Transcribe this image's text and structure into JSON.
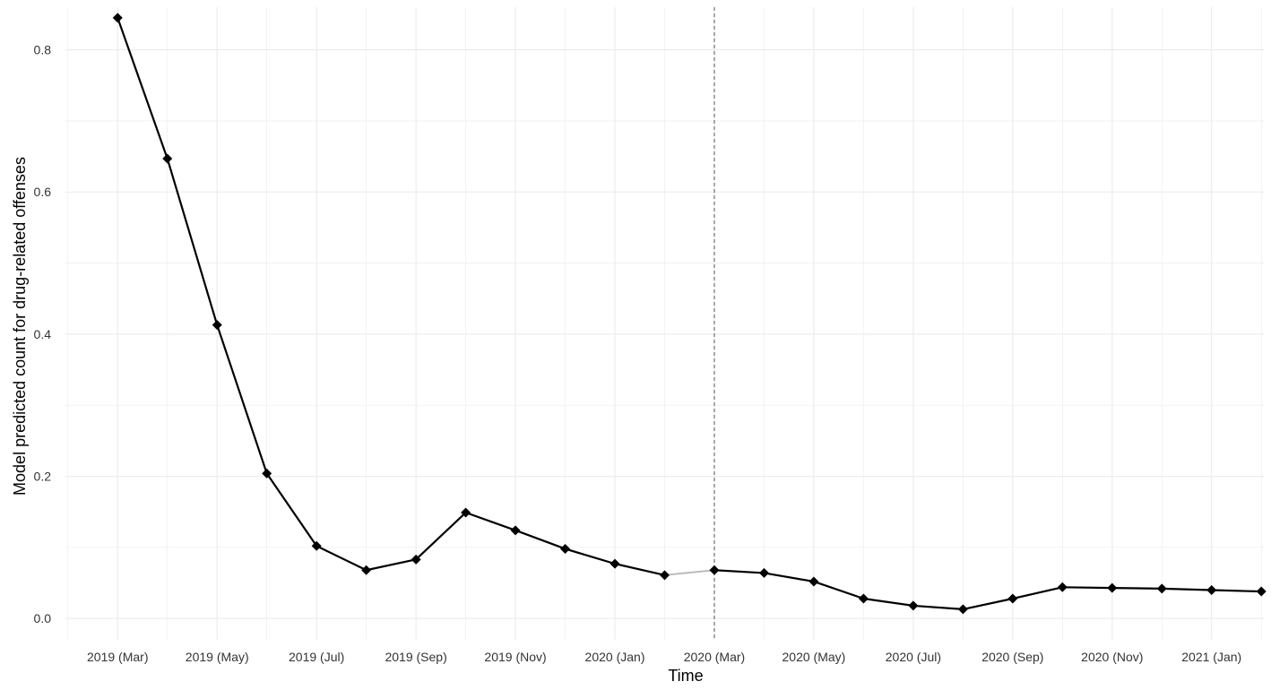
{
  "chart_data": {
    "type": "line",
    "title": "",
    "xlabel": "Time",
    "ylabel": "Model predicted count for drug-related offenses",
    "x_tick_labels": [
      "2019 (Mar)",
      "2019 (May)",
      "2019 (Jul)",
      "2019 (Sep)",
      "2019 (Nov)",
      "2020 (Jan)",
      "2020 (Mar)",
      "2020 (May)",
      "2020 (Jul)",
      "2020 (Sep)",
      "2020 (Nov)",
      "2021 (Jan)"
    ],
    "y_tick_labels": [
      "0.0",
      "0.2",
      "0.4",
      "0.6",
      "0.8"
    ],
    "y_ticks": [
      0,
      0.2,
      0.4,
      0.6,
      0.8
    ],
    "ylim": [
      -0.03,
      0.86
    ],
    "xlim": [
      "2019-02",
      "2021-02"
    ],
    "grid": true,
    "intervention_line": "2020-03",
    "series": [
      {
        "x": [
          "2019-03",
          "2019-04",
          "2019-05",
          "2019-06",
          "2019-07",
          "2019-08",
          "2019-09",
          "2019-10",
          "2019-11",
          "2019-12",
          "2020-01",
          "2020-02",
          "2020-03",
          "2020-04",
          "2020-05",
          "2020-06",
          "2020-07",
          "2020-08",
          "2020-09",
          "2020-10",
          "2020-11",
          "2020-12",
          "2021-01",
          "2021-02"
        ],
        "values": [
          0.845,
          0.647,
          0.413,
          0.204,
          0.102,
          0.068,
          0.083,
          0.149,
          0.124,
          0.098,
          0.077,
          0.061,
          0.068,
          0.064,
          0.052,
          0.028,
          0.018,
          0.013,
          0.028,
          0.044,
          0.043,
          0.042,
          0.04,
          0.038
        ]
      }
    ],
    "colors": {
      "line": "#000000",
      "grid": "#ebebeb",
      "vline": "#555555",
      "gap_segment": "#bbbbbb"
    }
  }
}
